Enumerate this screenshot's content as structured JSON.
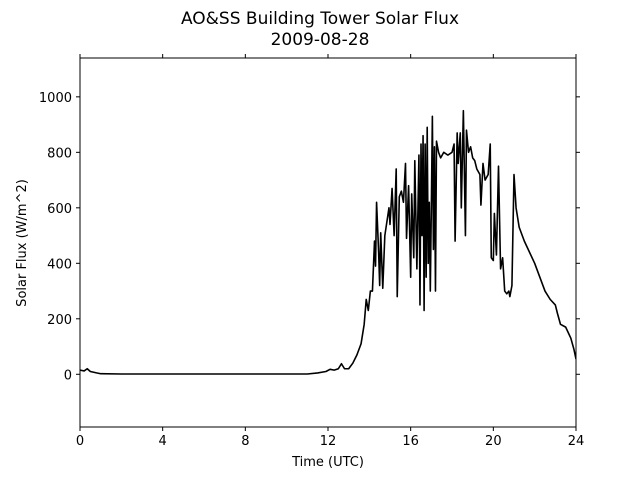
{
  "chart_data": {
    "type": "line",
    "title": "AO&SS Building Tower Solar Flux",
    "subtitle": "2009-08-28",
    "xlabel": "Time (UTC)",
    "ylabel": "Solar Flux (W/m^2)",
    "xlim": [
      0,
      24
    ],
    "xticks": [
      0,
      4,
      8,
      12,
      16,
      20,
      24
    ],
    "ylim": [
      -190,
      1140
    ],
    "yticks": [
      0,
      200,
      400,
      600,
      800,
      1000
    ],
    "grid": false,
    "series": [
      {
        "color": "#000000",
        "x": [
          0,
          0.2,
          0.35,
          0.5,
          0.8,
          1.0,
          2,
          4,
          6,
          8,
          10,
          11,
          11.5,
          11.9,
          12.1,
          12.3,
          12.5,
          12.65,
          12.8,
          13.0,
          13.2,
          13.4,
          13.6,
          13.75,
          13.85,
          13.95,
          14.05,
          14.15,
          14.25,
          14.3,
          14.35,
          14.45,
          14.5,
          14.55,
          14.65,
          14.75,
          14.85,
          14.95,
          15.0,
          15.1,
          15.2,
          15.3,
          15.35,
          15.45,
          15.55,
          15.65,
          15.75,
          15.8,
          15.9,
          16.0,
          16.05,
          16.15,
          16.2,
          16.3,
          16.4,
          16.45,
          16.5,
          16.55,
          16.6,
          16.65,
          16.7,
          16.75,
          16.8,
          16.85,
          16.9,
          16.95,
          17.0,
          17.05,
          17.1,
          17.15,
          17.2,
          17.25,
          17.35,
          17.45,
          17.6,
          17.8,
          18.0,
          18.1,
          18.15,
          18.25,
          18.3,
          18.4,
          18.45,
          18.55,
          18.65,
          18.7,
          18.8,
          18.9,
          19.0,
          19.1,
          19.2,
          19.35,
          19.4,
          19.5,
          19.6,
          19.75,
          19.85,
          19.9,
          20.0,
          20.05,
          20.15,
          20.25,
          20.35,
          20.45,
          20.55,
          20.65,
          20.75,
          20.8,
          20.9,
          21.0,
          21.1,
          21.25,
          21.5,
          22.0,
          22.5,
          22.75,
          23.0,
          23.1,
          23.25,
          23.5,
          23.75,
          23.9,
          24.0
        ],
        "values": [
          15,
          12,
          20,
          10,
          5,
          2,
          1,
          1,
          1,
          1,
          1,
          1,
          5,
          10,
          18,
          15,
          20,
          38,
          20,
          20,
          40,
          70,
          110,
          180,
          270,
          230,
          300,
          300,
          480,
          390,
          620,
          440,
          320,
          510,
          310,
          500,
          550,
          600,
          540,
          670,
          500,
          740,
          280,
          640,
          660,
          620,
          760,
          490,
          680,
          350,
          650,
          420,
          770,
          380,
          790,
          250,
          830,
          500,
          860,
          230,
          830,
          350,
          890,
          400,
          620,
          300,
          600,
          930,
          450,
          820,
          300,
          840,
          800,
          780,
          800,
          790,
          800,
          830,
          480,
          870,
          760,
          870,
          600,
          950,
          500,
          880,
          800,
          820,
          780,
          770,
          740,
          720,
          610,
          760,
          700,
          720,
          830,
          420,
          410,
          580,
          430,
          750,
          380,
          420,
          300,
          290,
          300,
          280,
          320,
          720,
          600,
          530,
          480,
          400,
          300,
          270,
          250,
          220,
          180,
          170,
          130,
          90,
          55
        ]
      }
    ]
  }
}
